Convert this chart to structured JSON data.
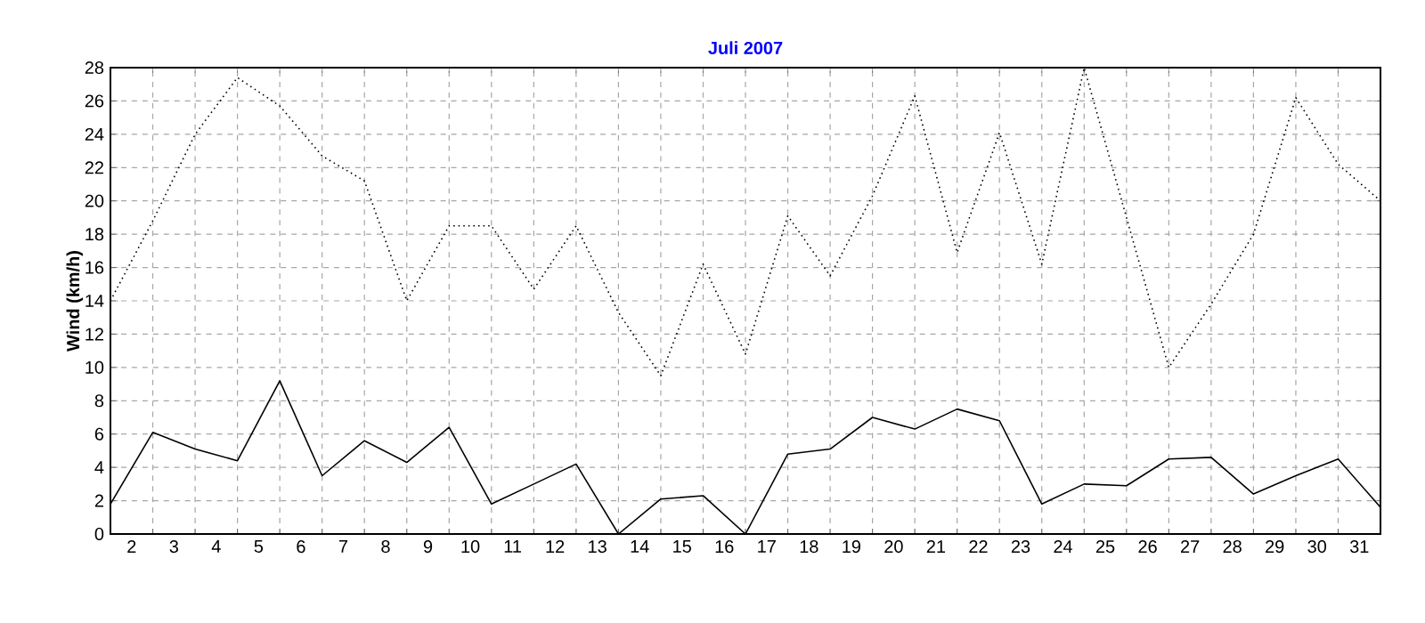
{
  "chart_data": {
    "type": "line",
    "title": "Juli 2007",
    "ylabel": "Wind  (km/h)",
    "x": [
      1.5,
      2.5,
      3.5,
      4.5,
      5.5,
      6.5,
      7.5,
      8.5,
      9.5,
      10.5,
      11.5,
      12.5,
      13.5,
      14.5,
      15.5,
      16.5,
      17.5,
      18.5,
      19.5,
      20.5,
      21.5,
      22.5,
      23.5,
      24.5,
      25.5,
      26.5,
      27.5,
      28.5,
      29.5,
      30.5,
      31.5
    ],
    "series": [
      {
        "color": "#000000",
        "line_style": "dotted",
        "values": [
          14.0,
          18.8,
          24.0,
          27.4,
          25.7,
          22.7,
          21.2,
          14.0,
          18.5,
          18.5,
          14.7,
          18.5,
          13.3,
          9.5,
          16.2,
          10.8,
          19.1,
          15.5,
          20.3,
          26.3,
          16.9,
          24.1,
          16.2,
          28.0,
          19.0,
          10.0,
          13.8,
          18.0,
          26.2,
          22.2,
          20.0
        ]
      },
      {
        "color": "#000000",
        "line_style": "solid",
        "values": [
          1.8,
          6.1,
          5.1,
          4.4,
          9.2,
          3.5,
          5.6,
          4.3,
          6.4,
          1.8,
          3.0,
          4.2,
          0.0,
          2.1,
          2.3,
          0.0,
          4.8,
          5.1,
          7.0,
          6.3,
          7.5,
          6.8,
          1.8,
          3.0,
          2.9,
          4.5,
          4.6,
          2.4,
          3.5,
          4.5,
          1.6
        ]
      }
    ],
    "xlim": [
      1.5,
      31.5
    ],
    "ylim": [
      0,
      28
    ],
    "xticks": [
      2,
      3,
      4,
      5,
      6,
      7,
      8,
      9,
      10,
      11,
      12,
      13,
      14,
      15,
      16,
      17,
      18,
      19,
      20,
      21,
      22,
      23,
      24,
      25,
      26,
      27,
      28,
      29,
      30,
      31
    ],
    "yticks": [
      0,
      2,
      4,
      6,
      8,
      10,
      12,
      14,
      16,
      18,
      20,
      22,
      24,
      26,
      28
    ],
    "grid": true,
    "marker": "none"
  }
}
